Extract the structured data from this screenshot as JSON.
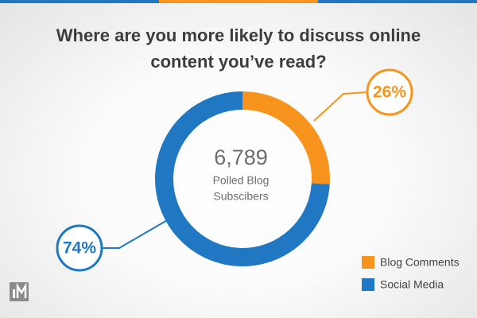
{
  "chart_data": {
    "type": "donut",
    "title": "Where are you more likely to discuss online content you’ve read?",
    "total": {
      "value": 6789,
      "label": "6,789"
    },
    "center_label": [
      "Polled Blog",
      "Subscibers"
    ],
    "categories": [
      "Blog Comments",
      "Social Media"
    ],
    "values": [
      26,
      74
    ],
    "value_labels": [
      "26%",
      "74%"
    ],
    "colors": [
      "#f7941d",
      "#1f78c1"
    ],
    "legend": "bottom-right"
  }
}
